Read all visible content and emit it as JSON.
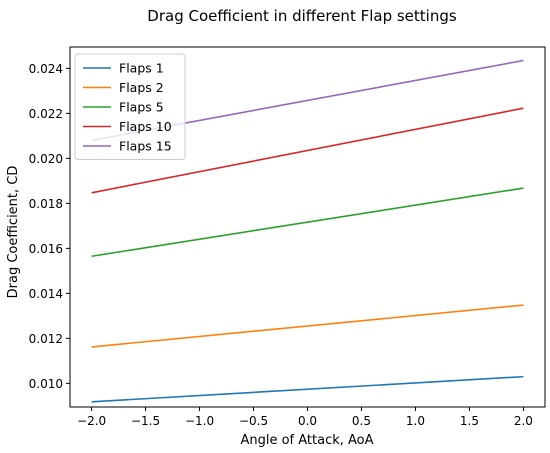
{
  "chart_data": {
    "type": "line",
    "title": "Drag Coefficient in different Flap settings",
    "xlabel": "Angle of Attack, AoA",
    "ylabel": "Drag Coefficient, CD",
    "xlim": [
      -2.2,
      2.2
    ],
    "ylim": [
      0.00895,
      0.02495
    ],
    "xticks": [
      -2.0,
      -1.5,
      -1.0,
      -0.5,
      0.0,
      0.5,
      1.0,
      1.5,
      2.0
    ],
    "xtick_labels": [
      "−2.0",
      "−1.5",
      "−1.0",
      "−0.5",
      "0.0",
      "0.5",
      "1.0",
      "1.5",
      "2.0"
    ],
    "yticks": [
      0.01,
      0.012,
      0.014,
      0.016,
      0.018,
      0.02,
      0.022,
      0.024
    ],
    "ytick_labels": [
      "0.010",
      "0.012",
      "0.014",
      "0.016",
      "0.018",
      "0.020",
      "0.022",
      "0.024"
    ],
    "grid": false,
    "legend_position": "top-left",
    "x": [
      -2.0,
      2.0
    ],
    "series": [
      {
        "name": "Flaps 1",
        "color": "#1f77b4",
        "values": [
          0.00918,
          0.0103
        ]
      },
      {
        "name": "Flaps 2",
        "color": "#ff7f0e",
        "values": [
          0.01162,
          0.01348
        ]
      },
      {
        "name": "Flaps 5",
        "color": "#2ca02c",
        "values": [
          0.01565,
          0.01868
        ]
      },
      {
        "name": "Flaps 10",
        "color": "#d62728",
        "values": [
          0.01847,
          0.02223
        ]
      },
      {
        "name": "Flaps 15",
        "color": "#9467bd",
        "values": [
          0.0208,
          0.02435
        ]
      }
    ]
  }
}
